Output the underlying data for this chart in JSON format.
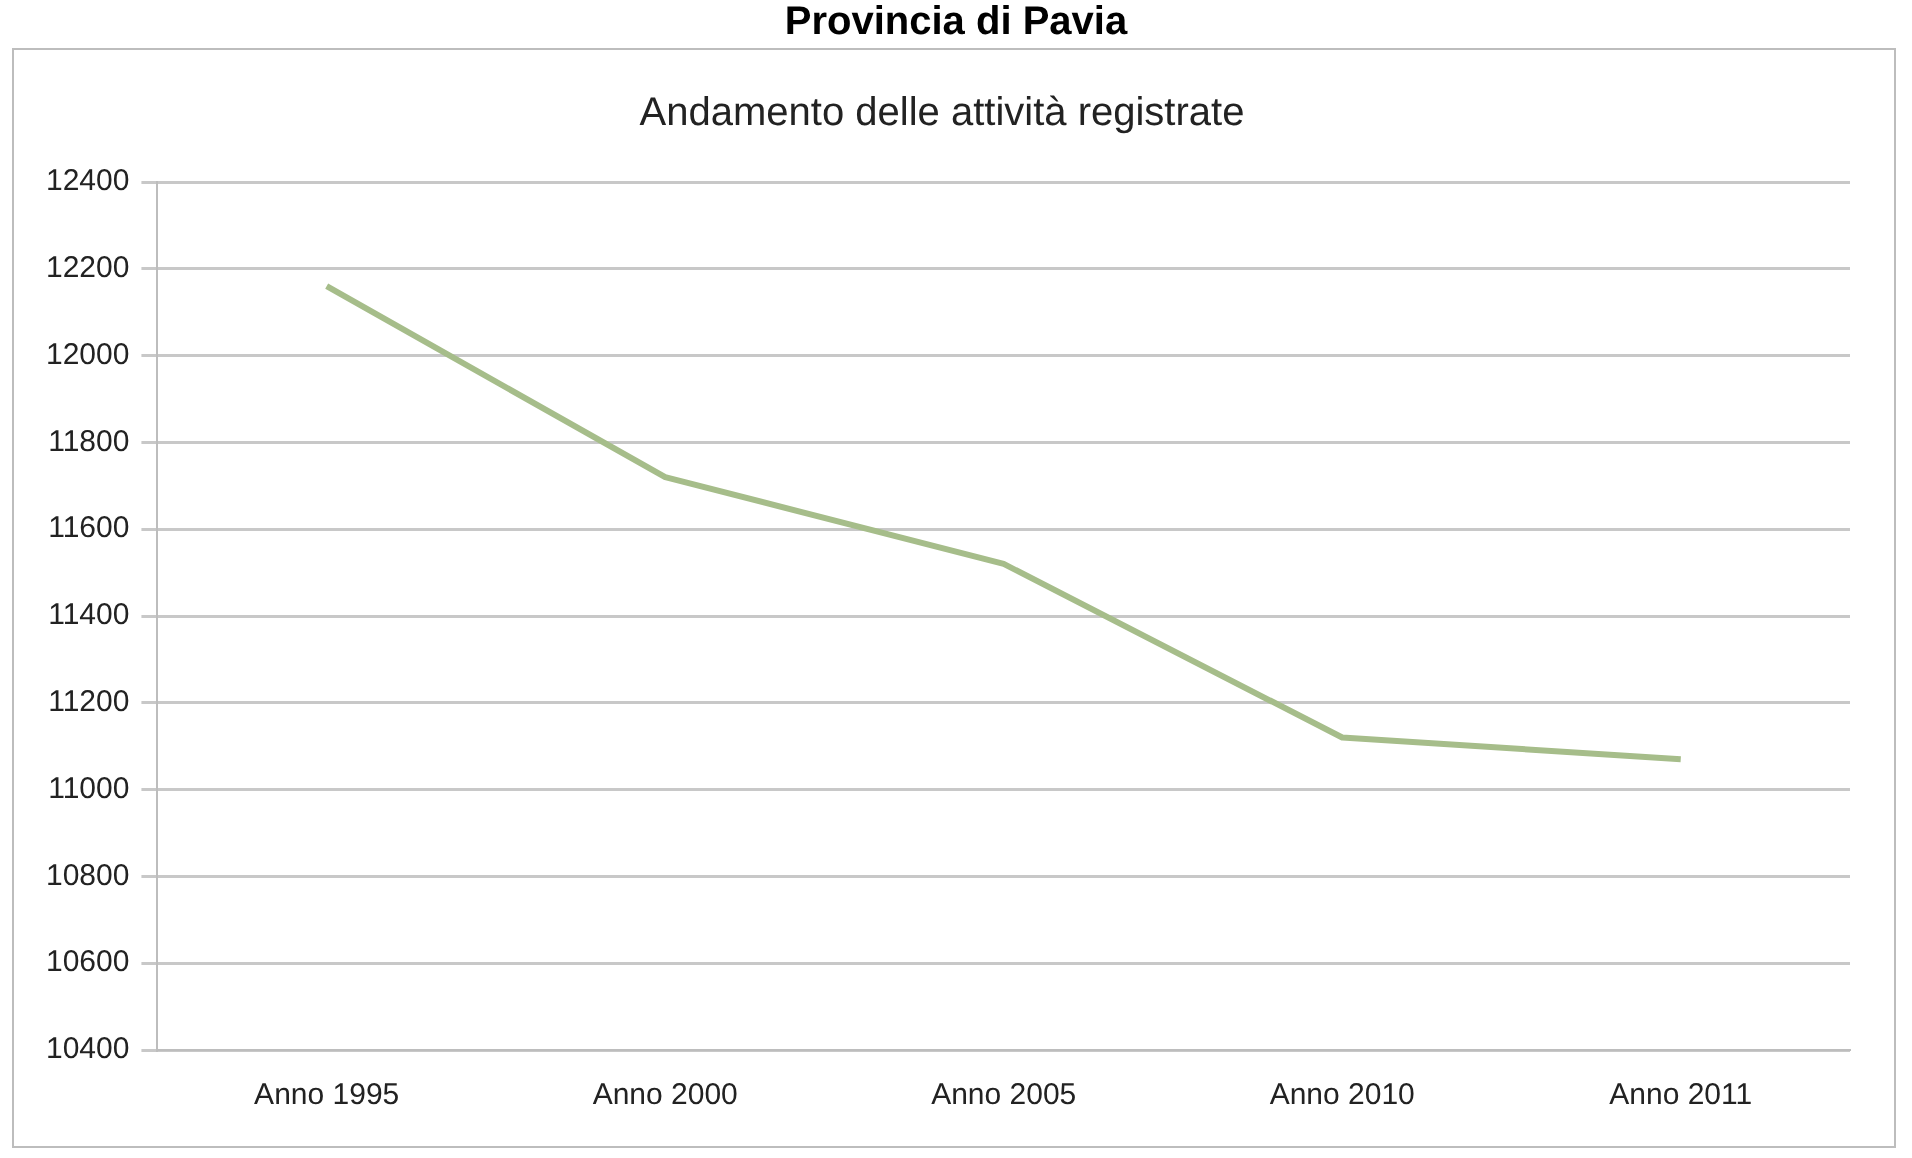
{
  "chart_data": {
    "type": "line",
    "title": "Provincia di Pavia",
    "subtitle": "Andamento delle attività registrate",
    "categories": [
      "Anno 1995",
      "Anno 2000",
      "Anno 2005",
      "Anno 2010",
      "Anno 2011"
    ],
    "series": [
      {
        "color": "#a6bd8a",
        "values": [
          12160,
          11720,
          11520,
          11120,
          11070
        ]
      }
    ],
    "ylim": [
      10400,
      12400
    ],
    "yticks": [
      10400,
      10600,
      10800,
      11000,
      11200,
      11400,
      11600,
      11800,
      12000,
      12200,
      12400
    ],
    "grid": "y",
    "legend": false,
    "marker": "none",
    "line_style": "solid"
  }
}
